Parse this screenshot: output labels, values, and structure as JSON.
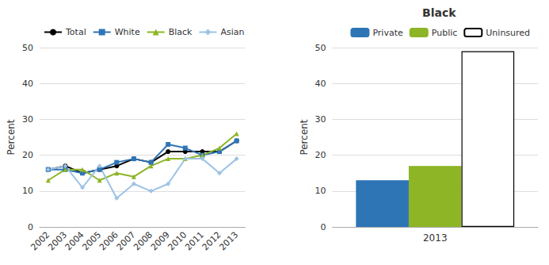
{
  "chart_data": [
    {
      "type": "line",
      "categories": [
        "2002",
        "2003",
        "2004",
        "2005",
        "2006",
        "2007",
        "2008",
        "2009",
        "2010",
        "2011",
        "2012",
        "2013"
      ],
      "series": [
        {
          "name": "Total",
          "color": "#000000",
          "marker": "circle",
          "values": [
            16,
            17,
            15,
            16,
            17,
            19,
            18,
            21,
            21,
            21,
            21,
            24
          ]
        },
        {
          "name": "White",
          "color": "#2E75B6",
          "marker": "square",
          "values": [
            16,
            16,
            15,
            16,
            18,
            19,
            18,
            23,
            22,
            20,
            21,
            24
          ]
        },
        {
          "name": "Black",
          "color": "#8DB526",
          "marker": "triangle",
          "values": [
            13,
            16,
            16,
            13,
            15,
            14,
            17,
            19,
            19,
            20,
            22,
            26
          ]
        },
        {
          "name": "Asian",
          "color": "#9DC3E6",
          "marker": "diamond",
          "values": [
            16,
            17,
            11,
            17,
            8,
            12,
            10,
            12,
            19,
            19,
            15,
            19
          ]
        }
      ],
      "ylabel": "Percent",
      "ylim": [
        0,
        50
      ],
      "yticks": [
        0,
        10,
        20,
        30,
        40,
        50
      ],
      "grid": true,
      "legend": "upper left"
    },
    {
      "type": "bar",
      "title": "Black",
      "categories": [
        "2013"
      ],
      "series": [
        {
          "name": "Private",
          "color": "#2E75B6",
          "values": [
            13
          ]
        },
        {
          "name": "Public",
          "color": "#8DB526",
          "values": [
            17
          ]
        },
        {
          "name": "Uninsured",
          "color": "#FFFFFF",
          "values": [
            49
          ]
        }
      ],
      "ylabel": "Percent",
      "ylim": [
        0,
        50
      ],
      "yticks": [
        0,
        10,
        20,
        30,
        40,
        50
      ],
      "grid": true,
      "legend": "upper center"
    }
  ]
}
